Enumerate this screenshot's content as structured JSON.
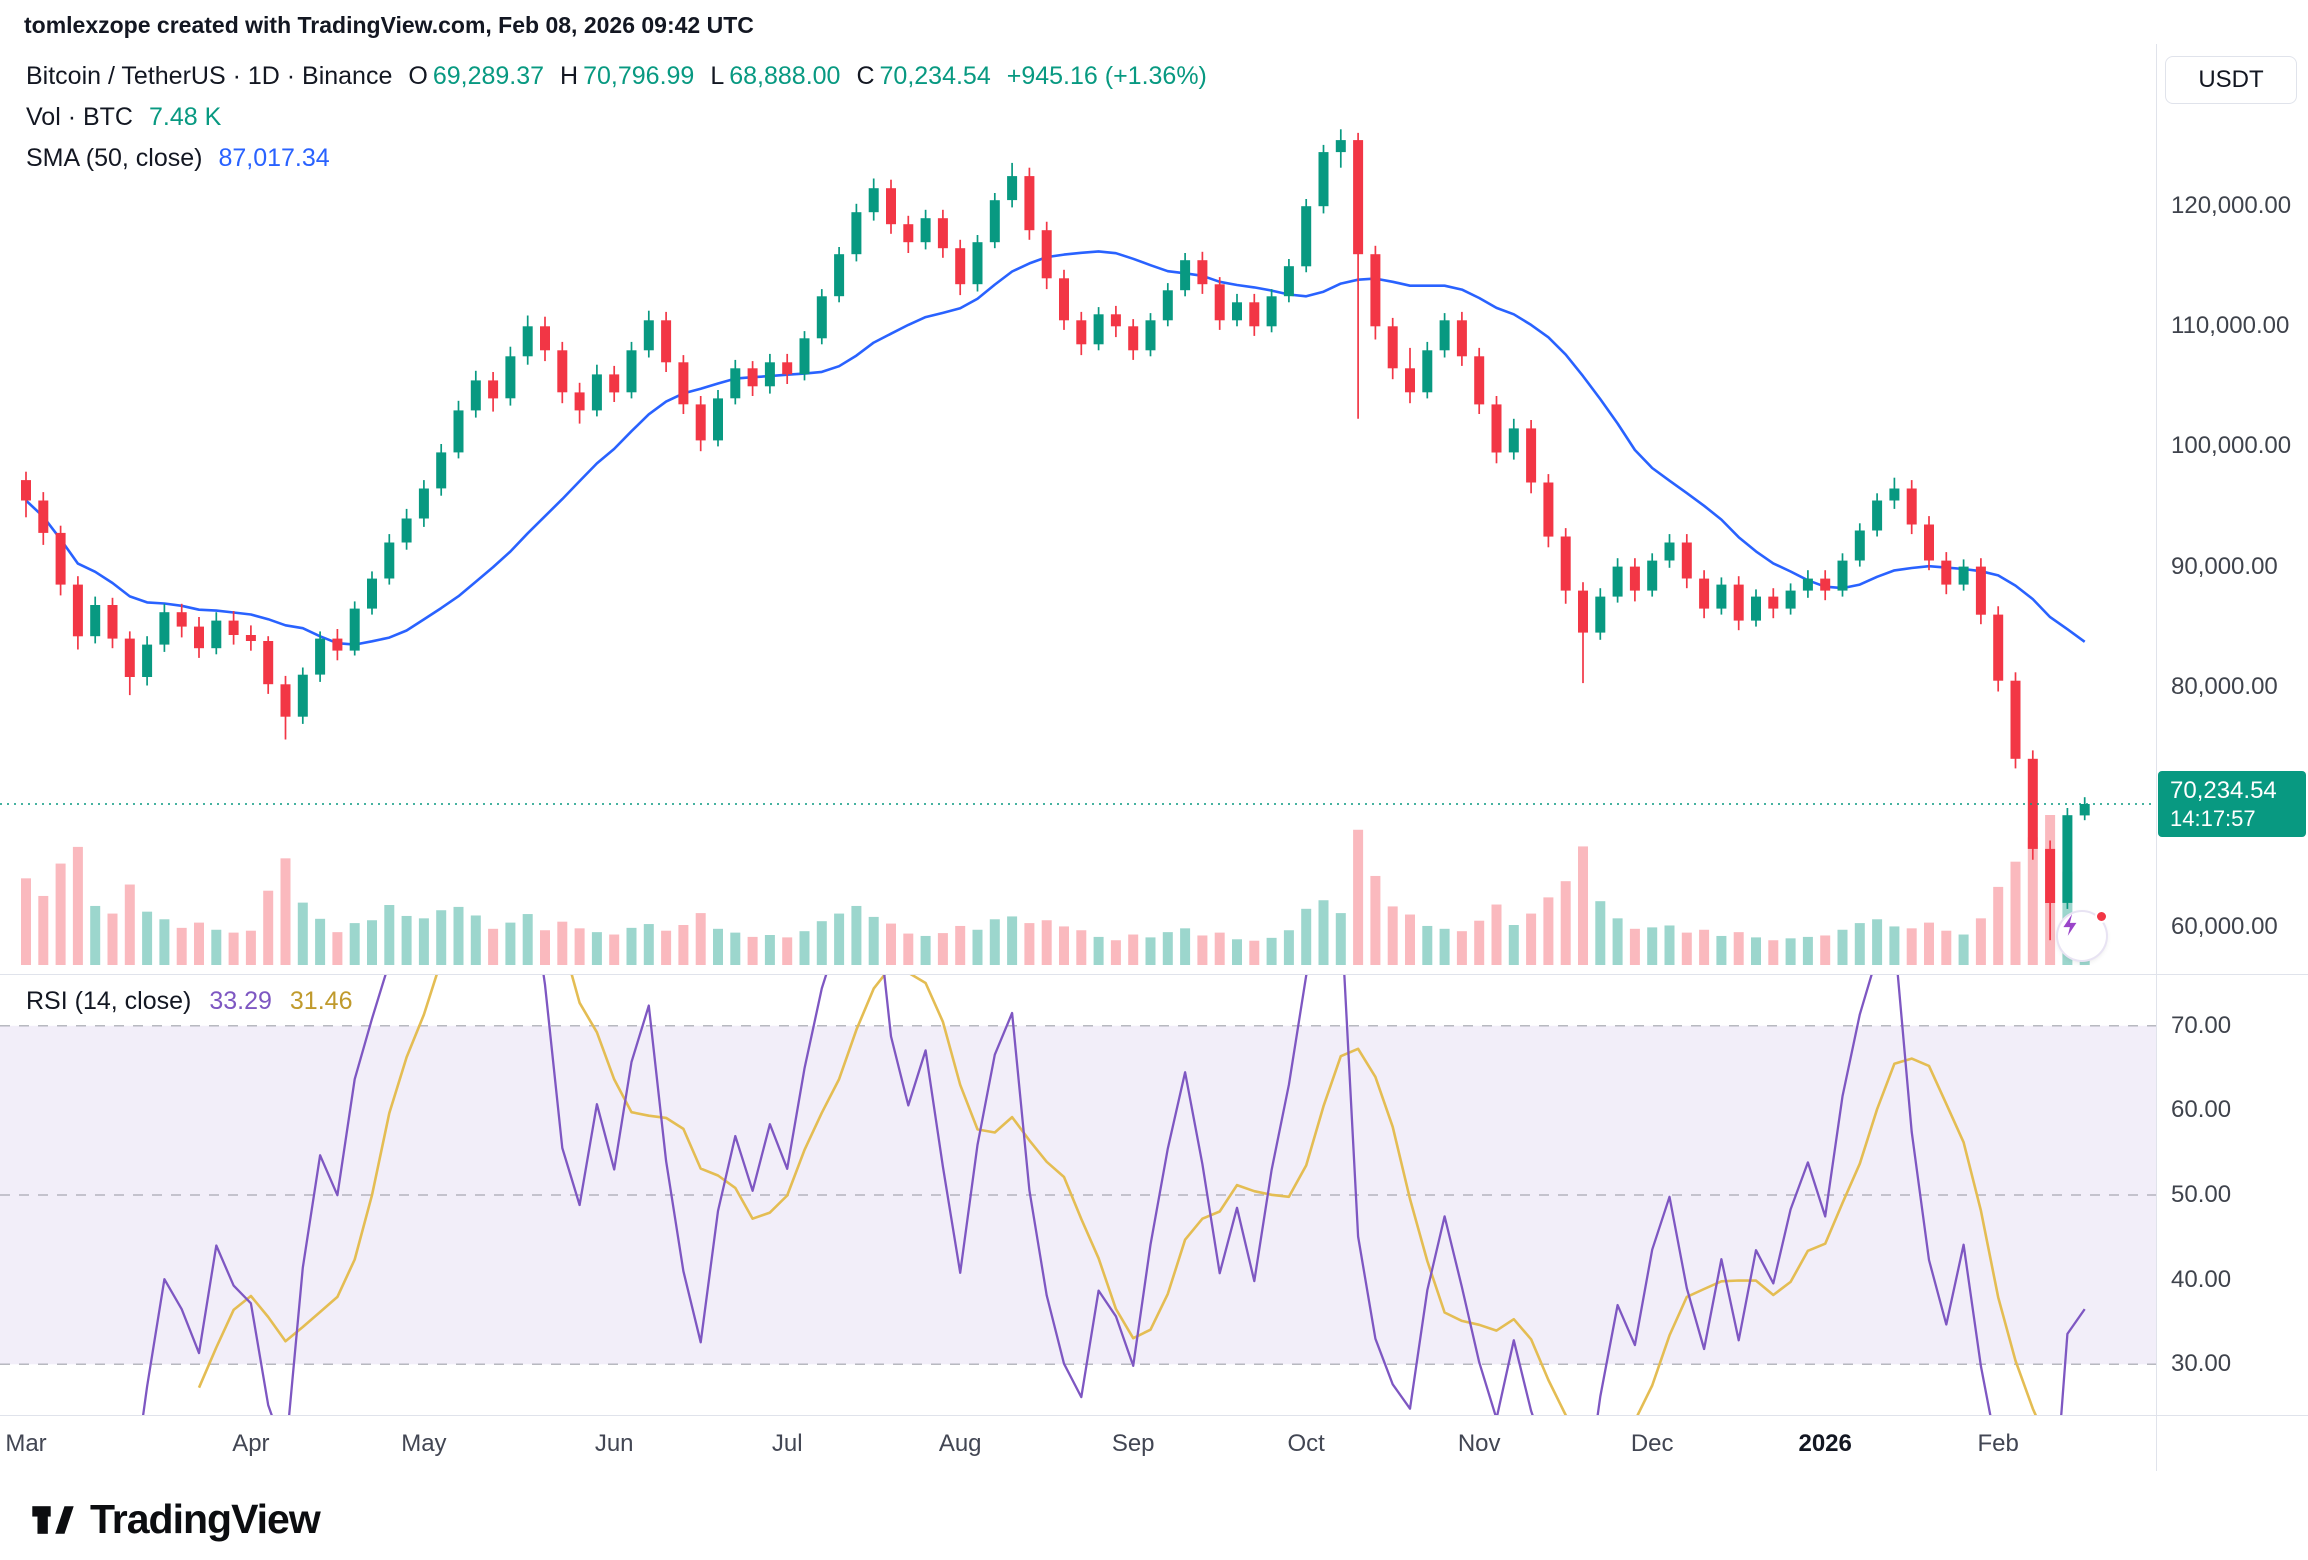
{
  "header": {
    "attribution": "tomlexzope created with TradingView.com, Feb 08, 2026 09:42 UTC"
  },
  "legend": {
    "symbol_line": "Bitcoin / TetherUS · 1D · Binance",
    "ohlc": [
      {
        "label": "O",
        "value": "69,289.37"
      },
      {
        "label": "H",
        "value": "70,796.99"
      },
      {
        "label": "L",
        "value": "68,888.00"
      },
      {
        "label": "C",
        "value": "70,234.54"
      }
    ],
    "change": "+945.16 (+1.36%)",
    "vol_label": "Vol · BTC",
    "vol_value": "7.48 K",
    "sma_label": "SMA (50, close)",
    "sma_value": "87,017.34"
  },
  "rsi_legend": {
    "label": "RSI (14, close)",
    "value1": "33.29",
    "value2": "31.46"
  },
  "price_axis": {
    "currency": "USDT",
    "ticks": [
      {
        "label": "120,000.00",
        "value": 120000
      },
      {
        "label": "110,000.00",
        "value": 110000
      },
      {
        "label": "100,000.00",
        "value": 100000
      },
      {
        "label": "90,000.00",
        "value": 90000
      },
      {
        "label": "80,000.00",
        "value": 80000
      },
      {
        "label": "60,000.00",
        "value": 60000
      }
    ],
    "last_price": "70,234.54",
    "countdown": "14:17:57"
  },
  "rsi_axis": {
    "ticks": [
      {
        "label": "70.00",
        "value": 70
      },
      {
        "label": "60.00",
        "value": 60
      },
      {
        "label": "50.00",
        "value": 50
      },
      {
        "label": "40.00",
        "value": 40
      },
      {
        "label": "30.00",
        "value": 30
      }
    ]
  },
  "footer": {
    "brand": "TradingView"
  },
  "colors": {
    "up": "#089981",
    "down": "#f23645",
    "vol_up": "rgba(8,153,129,0.40)",
    "vol_down": "rgba(242,54,69,0.35)",
    "sma": "#2962ff",
    "rsi": "#7e57c2",
    "rsi_ma_line": "#e4bd53",
    "rsi_ma_text": "#c09a2c",
    "band": "rgba(126,87,194,0.10)",
    "grid_dash": "#82858f",
    "last_price_line": "#089981",
    "badge": "#089981"
  },
  "chart_data": {
    "type": "candlestick",
    "title": "Bitcoin / TetherUS 1D Binance with volume, SMA(50) and RSI(14)",
    "price_ylim": [
      56000,
      133500
    ],
    "rsi_ylim": [
      24,
      76
    ],
    "rsi_levels": [
      70,
      50,
      30
    ],
    "sma_window_bars": 17,
    "rsi_period_bars": 5,
    "rsi_ma_window_bars": 6,
    "last_close": 70234.54,
    "columns": [
      "open",
      "high",
      "low",
      "close",
      "volume_kbtc"
    ],
    "month_starts": [
      {
        "label": "Mar",
        "i": 0
      },
      {
        "label": "Apr",
        "i": 13
      },
      {
        "label": "May",
        "i": 23
      },
      {
        "label": "Jun",
        "i": 34
      },
      {
        "label": "Jul",
        "i": 44
      },
      {
        "label": "Aug",
        "i": 54
      },
      {
        "label": "Sep",
        "i": 64
      },
      {
        "label": "Oct",
        "i": 74
      },
      {
        "label": "Nov",
        "i": 84
      },
      {
        "label": "Dec",
        "i": 94
      },
      {
        "label": "2026",
        "i": 104,
        "bold": true
      },
      {
        "label": "Feb",
        "i": 114
      }
    ],
    "candles": [
      [
        97200,
        97900,
        94100,
        95500,
        18.2
      ],
      [
        95500,
        96200,
        91800,
        92800,
        14.5
      ],
      [
        92800,
        93400,
        87600,
        88500,
        21.3
      ],
      [
        88500,
        89200,
        83100,
        84200,
        24.8
      ],
      [
        84200,
        87500,
        83600,
        86800,
        12.4
      ],
      [
        86800,
        87400,
        83200,
        84000,
        10.8
      ],
      [
        84000,
        84600,
        79300,
        80800,
        16.9
      ],
      [
        80800,
        84200,
        80100,
        83500,
        11.2
      ],
      [
        83500,
        86900,
        82900,
        86200,
        9.6
      ],
      [
        86200,
        86900,
        84100,
        85000,
        7.8
      ],
      [
        85000,
        85800,
        82400,
        83200,
        8.9
      ],
      [
        83200,
        86200,
        82700,
        85500,
        7.4
      ],
      [
        85500,
        86300,
        83500,
        84300,
        6.8
      ],
      [
        84300,
        85100,
        83000,
        83800,
        7.2
      ],
      [
        83800,
        84200,
        79400,
        80200,
        15.6
      ],
      [
        80200,
        80900,
        75600,
        77500,
        22.4
      ],
      [
        77500,
        81600,
        76900,
        81000,
        13.1
      ],
      [
        81000,
        84600,
        80400,
        84000,
        9.7
      ],
      [
        84000,
        84800,
        82200,
        83000,
        6.9
      ],
      [
        83000,
        87100,
        82600,
        86500,
        8.8
      ],
      [
        86500,
        89600,
        86000,
        89000,
        9.4
      ],
      [
        89000,
        92700,
        88500,
        92000,
        12.6
      ],
      [
        92000,
        94800,
        91400,
        94000,
        10.3
      ],
      [
        94000,
        97200,
        93300,
        96500,
        9.8
      ],
      [
        96500,
        100200,
        95900,
        99500,
        11.5
      ],
      [
        99500,
        103800,
        99000,
        103000,
        12.2
      ],
      [
        103000,
        106300,
        102400,
        105500,
        10.4
      ],
      [
        105500,
        106200,
        102900,
        104000,
        7.6
      ],
      [
        104000,
        108300,
        103400,
        107500,
        8.9
      ],
      [
        107500,
        110900,
        106800,
        110000,
        10.7
      ],
      [
        110000,
        110800,
        107100,
        108000,
        7.3
      ],
      [
        108000,
        108700,
        103600,
        104500,
        9.1
      ],
      [
        104500,
        105300,
        101900,
        103000,
        7.7
      ],
      [
        103000,
        106800,
        102500,
        106000,
        6.9
      ],
      [
        106000,
        106700,
        103700,
        104500,
        6.4
      ],
      [
        104500,
        108700,
        104000,
        108000,
        7.8
      ],
      [
        108000,
        111300,
        107400,
        110500,
        8.6
      ],
      [
        110500,
        111200,
        106200,
        107000,
        7.2
      ],
      [
        107000,
        107600,
        102700,
        103500,
        8.4
      ],
      [
        103500,
        104200,
        99600,
        100500,
        10.9
      ],
      [
        100500,
        104700,
        100000,
        104000,
        7.6
      ],
      [
        104000,
        107200,
        103500,
        106500,
        6.8
      ],
      [
        106500,
        107100,
        104200,
        105000,
        5.9
      ],
      [
        105000,
        107700,
        104400,
        107000,
        6.3
      ],
      [
        107000,
        107700,
        105200,
        106000,
        5.8
      ],
      [
        106000,
        109600,
        105500,
        109000,
        7.1
      ],
      [
        109000,
        113100,
        108500,
        112500,
        9.2
      ],
      [
        112500,
        116600,
        112000,
        116000,
        10.8
      ],
      [
        116000,
        120200,
        115400,
        119500,
        12.4
      ],
      [
        119500,
        122300,
        118800,
        121500,
        10.1
      ],
      [
        121500,
        122200,
        117700,
        118500,
        8.7
      ],
      [
        118500,
        119200,
        116100,
        117000,
        6.6
      ],
      [
        117000,
        119700,
        116400,
        119000,
        6.1
      ],
      [
        119000,
        119700,
        115700,
        116500,
        6.7
      ],
      [
        116500,
        117200,
        112600,
        113500,
        8.2
      ],
      [
        113500,
        117600,
        112900,
        117000,
        7.4
      ],
      [
        117000,
        121100,
        116500,
        120500,
        9.6
      ],
      [
        120500,
        123600,
        119900,
        122500,
        10.2
      ],
      [
        122500,
        123200,
        117200,
        118000,
        8.8
      ],
      [
        118000,
        118700,
        113100,
        114000,
        9.4
      ],
      [
        114000,
        114700,
        109700,
        110500,
        8.1
      ],
      [
        110500,
        111200,
        107600,
        108500,
        7.3
      ],
      [
        108500,
        111600,
        108000,
        111000,
        5.9
      ],
      [
        111000,
        111700,
        109100,
        110000,
        5.2
      ],
      [
        110000,
        110600,
        107200,
        108000,
        6.4
      ],
      [
        108000,
        111100,
        107500,
        110500,
        5.8
      ],
      [
        110500,
        113600,
        110000,
        113000,
        6.9
      ],
      [
        113000,
        116100,
        112500,
        115500,
        7.7
      ],
      [
        115500,
        116200,
        112700,
        113500,
        6.2
      ],
      [
        113500,
        114100,
        109700,
        110500,
        6.8
      ],
      [
        110500,
        112700,
        110000,
        112000,
        5.4
      ],
      [
        112000,
        112700,
        109200,
        110000,
        5.1
      ],
      [
        110000,
        113100,
        109500,
        112500,
        5.7
      ],
      [
        112500,
        115600,
        112000,
        115000,
        7.3
      ],
      [
        115000,
        120600,
        114500,
        120000,
        11.8
      ],
      [
        120000,
        125100,
        119400,
        124500,
        13.6
      ],
      [
        124500,
        126400,
        123200,
        125500,
        10.9
      ],
      [
        125500,
        126100,
        102300,
        116000,
        28.4
      ],
      [
        116000,
        116700,
        108900,
        110000,
        18.7
      ],
      [
        110000,
        110700,
        105600,
        106500,
        12.3
      ],
      [
        106500,
        108200,
        103600,
        104500,
        10.6
      ],
      [
        104500,
        108700,
        104000,
        108000,
        8.2
      ],
      [
        108000,
        111100,
        107400,
        110500,
        7.6
      ],
      [
        110500,
        111200,
        106700,
        107500,
        7.1
      ],
      [
        107500,
        108200,
        102700,
        103500,
        9.3
      ],
      [
        103500,
        104200,
        98600,
        99500,
        12.7
      ],
      [
        99500,
        102300,
        98900,
        101500,
        8.4
      ],
      [
        101500,
        102200,
        96100,
        97000,
        10.8
      ],
      [
        97000,
        97700,
        91600,
        92500,
        14.2
      ],
      [
        92500,
        93200,
        86900,
        88000,
        17.6
      ],
      [
        88000,
        88700,
        80300,
        84500,
        24.9
      ],
      [
        84500,
        88200,
        83900,
        87500,
        13.4
      ],
      [
        87500,
        90700,
        87000,
        90000,
        9.8
      ],
      [
        90000,
        90700,
        87100,
        88000,
        7.6
      ],
      [
        88000,
        91100,
        87500,
        90500,
        7.9
      ],
      [
        90500,
        92700,
        89900,
        92000,
        8.3
      ],
      [
        92000,
        92700,
        88200,
        89000,
        6.8
      ],
      [
        89000,
        89700,
        85700,
        86500,
        7.4
      ],
      [
        86500,
        89100,
        86000,
        88500,
        6.1
      ],
      [
        88500,
        89200,
        84700,
        85500,
        6.9
      ],
      [
        85500,
        88100,
        85000,
        87500,
        5.8
      ],
      [
        87500,
        88200,
        85700,
        86500,
        5.2
      ],
      [
        86500,
        88600,
        86000,
        88000,
        5.6
      ],
      [
        88000,
        89700,
        87400,
        89000,
        5.9
      ],
      [
        89000,
        89700,
        87200,
        88000,
        6.2
      ],
      [
        88000,
        91100,
        87500,
        90500,
        7.4
      ],
      [
        90500,
        93600,
        90000,
        93000,
        8.8
      ],
      [
        93000,
        96100,
        92500,
        95500,
        9.6
      ],
      [
        95500,
        97400,
        94800,
        96500,
        8.1
      ],
      [
        96500,
        97200,
        92700,
        93500,
        7.7
      ],
      [
        93500,
        94200,
        89700,
        90500,
        8.9
      ],
      [
        90500,
        91200,
        87700,
        88500,
        7.2
      ],
      [
        88500,
        90600,
        88000,
        90000,
        6.4
      ],
      [
        90000,
        90700,
        85200,
        86000,
        9.8
      ],
      [
        86000,
        86700,
        79600,
        80500,
        16.4
      ],
      [
        80500,
        81200,
        73200,
        74000,
        21.7
      ],
      [
        74000,
        74700,
        65600,
        66500,
        26.8
      ],
      [
        66500,
        67200,
        58900,
        62000,
        31.5
      ],
      [
        62000,
        69900,
        61500,
        69300,
        19.6
      ],
      [
        69289.37,
        70796.99,
        68888,
        70234.54,
        7.48
      ]
    ]
  }
}
